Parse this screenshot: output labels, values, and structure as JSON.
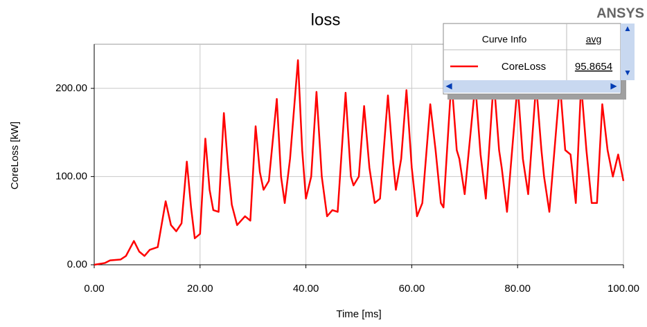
{
  "chart_data": {
    "type": "line",
    "title": "loss",
    "brand": "ANSYS",
    "x_label": "Time [ms]",
    "y_label": "CoreLoss [kW]",
    "legend_headers": [
      "Curve Info",
      "avg"
    ],
    "xlim": [
      0,
      100
    ],
    "xticks": [
      {
        "value": 0,
        "label": "0.00"
      },
      {
        "value": 20,
        "label": "20.00"
      },
      {
        "value": 40,
        "label": "40.00"
      },
      {
        "value": 60,
        "label": "60.00"
      },
      {
        "value": 80,
        "label": "80.00"
      },
      {
        "value": 100,
        "label": "100.00"
      }
    ],
    "ylim": [
      0,
      250
    ],
    "yticks": [
      {
        "value": 0,
        "label": "0.00"
      },
      {
        "value": 100,
        "label": "100.00"
      },
      {
        "value": 200,
        "label": "200.00"
      }
    ],
    "grid": true,
    "x": [
      0,
      2,
      3,
      5,
      6,
      7.5,
      8.5,
      9.5,
      10.5,
      12,
      13.5,
      14.5,
      15.5,
      16.5,
      17.5,
      18.3,
      19,
      20,
      21,
      21.8,
      22.5,
      23.5,
      24.5,
      25.3,
      26,
      27,
      28.5,
      29.5,
      30.5,
      31.3,
      32,
      33,
      34.5,
      35.3,
      36,
      37,
      38.5,
      39.3,
      40,
      41,
      42,
      43,
      44,
      45,
      46,
      47.5,
      48.5,
      49,
      50,
      51,
      52,
      53,
      54,
      55.5,
      56.5,
      57,
      58,
      59,
      60,
      61,
      62,
      63.5,
      64.5,
      65.5,
      66,
      67.5,
      68.5,
      69,
      70,
      72,
      73,
      74,
      75.5,
      76.5,
      77,
      78,
      80,
      81,
      82,
      83.5,
      84.5,
      85,
      86,
      88,
      89,
      90,
      91,
      92,
      93,
      94,
      95,
      96,
      97,
      98,
      99,
      100
    ],
    "series": [
      {
        "name": "CoreLoss",
        "color": "#ff0000",
        "avg": 95.8654,
        "values": [
          0,
          2,
          5,
          6,
          10,
          27,
          15,
          10,
          17,
          20,
          72,
          45,
          38,
          47,
          117,
          65,
          30,
          35,
          143,
          85,
          62,
          60,
          172,
          110,
          68,
          45,
          55,
          50,
          157,
          105,
          85,
          95,
          188,
          100,
          70,
          120,
          232,
          130,
          75,
          100,
          196,
          100,
          55,
          62,
          60,
          195,
          100,
          90,
          100,
          180,
          110,
          70,
          75,
          192,
          115,
          85,
          120,
          198,
          110,
          55,
          70,
          182,
          130,
          70,
          65,
          210,
          130,
          120,
          80,
          205,
          125,
          75,
          210,
          130,
          110,
          60,
          205,
          120,
          80,
          205,
          130,
          100,
          60,
          205,
          130,
          125,
          70,
          205,
          130,
          70,
          70,
          182,
          130,
          100,
          125,
          95
        ]
      }
    ]
  }
}
